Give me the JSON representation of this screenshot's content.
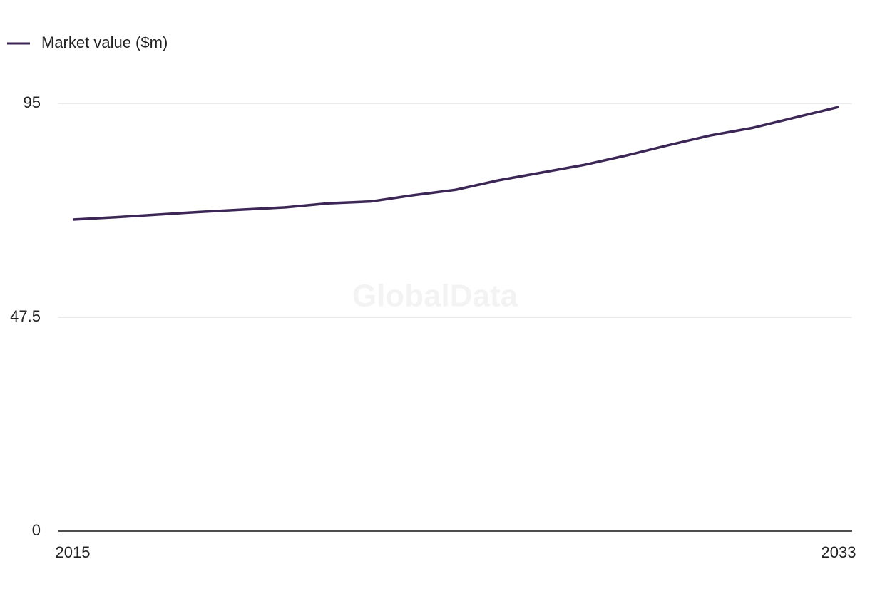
{
  "chart_data": {
    "type": "line",
    "legend_position": "top-left",
    "watermark": "GlobalData",
    "x": [
      2015,
      2016,
      2017,
      2018,
      2019,
      2020,
      2021,
      2022,
      2023,
      2024,
      2025,
      2026,
      2027,
      2028,
      2029,
      2030,
      2031,
      2032,
      2033
    ],
    "series": [
      {
        "name": "Market value ($m)",
        "color": "#3b2656",
        "values": [
          69.2,
          69.7,
          70.3,
          70.9,
          71.4,
          71.9,
          72.8,
          73.2,
          74.6,
          75.8,
          77.9,
          79.6,
          81.3,
          83.4,
          85.7,
          87.9,
          89.6,
          91.9,
          94.2
        ]
      }
    ],
    "xlim": [
      2015,
      2033
    ],
    "xticks": [
      2015,
      2033
    ],
    "ylim": [
      0,
      95
    ],
    "yticks": [
      0,
      47.5,
      95
    ],
    "grid": true
  }
}
